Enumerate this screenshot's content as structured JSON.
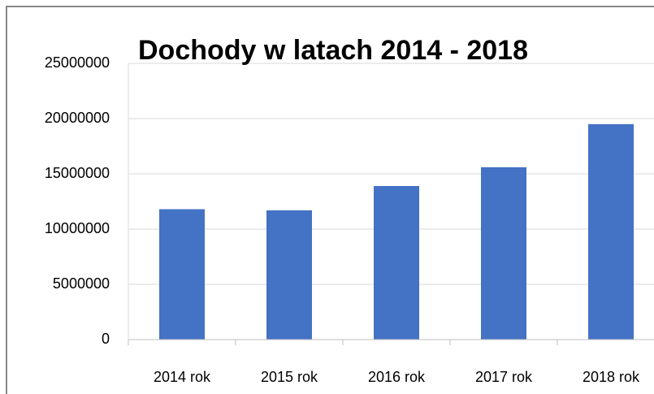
{
  "chart_data": {
    "type": "bar",
    "title": "Dochody w latach 2014 - 2018",
    "categories": [
      "2014 rok",
      "2015 rok",
      "2016 rok",
      "2017 rok",
      "2018 rok"
    ],
    "values": [
      11800000,
      11700000,
      13900000,
      15600000,
      19500000
    ],
    "color": "#4472c4",
    "ylim": [
      0,
      25000000
    ],
    "yticks": [
      0,
      5000000,
      10000000,
      15000000,
      20000000,
      25000000
    ],
    "grid": true
  }
}
